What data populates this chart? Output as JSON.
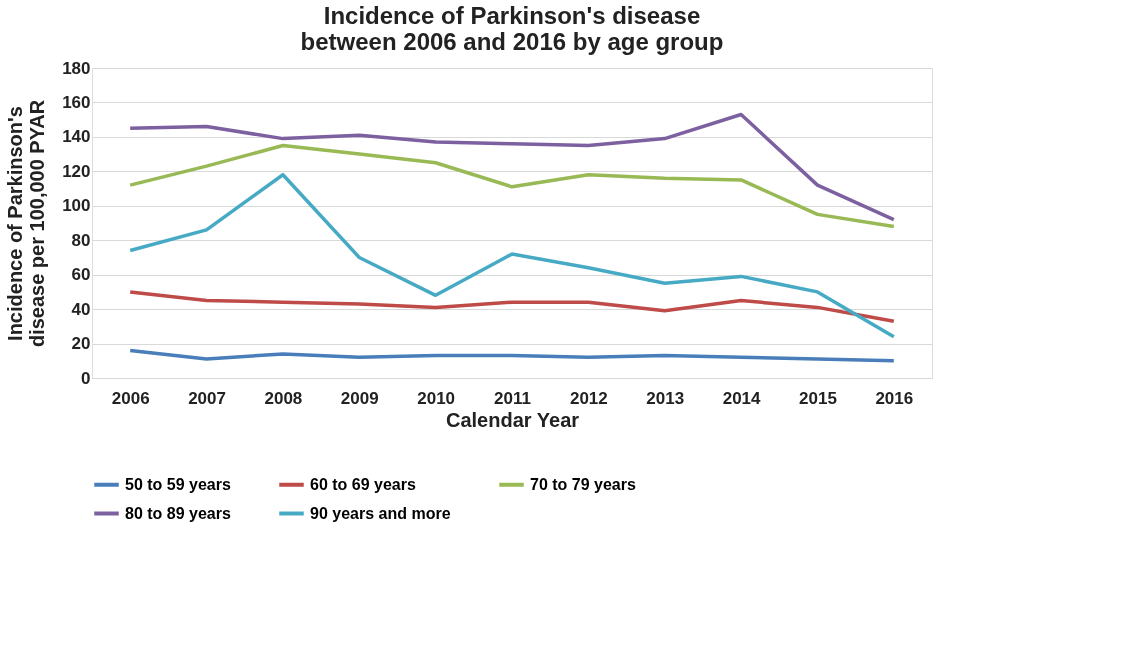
{
  "chart_data": {
    "type": "line",
    "title": "Incidence of Parkinson's disease between 2006 and 2016 by age group",
    "xlabel": "Calendar Year",
    "ylabel": "Incidence of Parkinson's disease per 100,000 PYAR",
    "categories": [
      "2006",
      "2007",
      "2008",
      "2009",
      "2010",
      "2011",
      "2012",
      "2013",
      "2014",
      "2015",
      "2016"
    ],
    "ylim": [
      0,
      180
    ],
    "yticks": [
      0,
      20,
      40,
      60,
      80,
      100,
      120,
      140,
      160,
      180
    ],
    "grid": "y",
    "legend": "bottom",
    "marker": "none",
    "line_style": "solid",
    "series": [
      {
        "name": "50 to 59 years",
        "color": "#4a7ebb",
        "values": [
          16,
          11,
          14,
          12,
          13,
          13,
          12,
          13,
          12,
          11,
          10
        ]
      },
      {
        "name": "60 to 69 years",
        "color": "#be4b48",
        "values": [
          50,
          45,
          44,
          43,
          41,
          44,
          44,
          39,
          45,
          41,
          33
        ]
      },
      {
        "name": "70 to 79 years",
        "color": "#98b954",
        "values": [
          112,
          123,
          135,
          130,
          125,
          111,
          118,
          116,
          115,
          95,
          88
        ]
      },
      {
        "name": "80 to 89 years",
        "color": "#7d60a0",
        "values": [
          145,
          146,
          139,
          141,
          137,
          136,
          135,
          139,
          153,
          112,
          92
        ]
      },
      {
        "name": "90 years and more",
        "color": "#46aac5",
        "values": [
          74,
          86,
          118,
          70,
          48,
          72,
          64,
          55,
          59,
          50,
          24
        ]
      }
    ]
  }
}
